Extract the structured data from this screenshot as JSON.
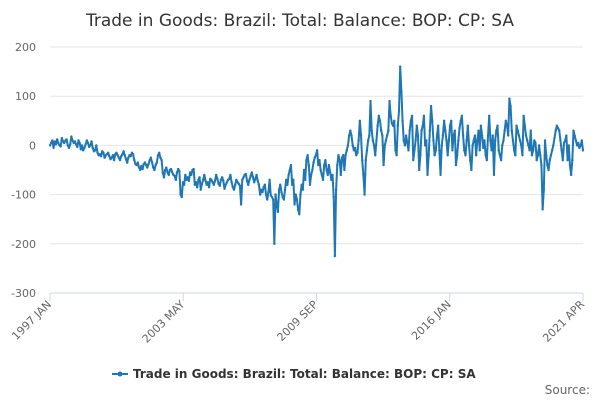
{
  "chart_data": {
    "type": "line",
    "title": "Trade in Goods: Brazil: Total: Balance: BOP: CP: SA",
    "xlabel": "",
    "ylabel": "",
    "ylim": [
      -300,
      200
    ],
    "yticks": [
      200,
      100,
      0,
      -100,
      -200,
      -300
    ],
    "x_start": "1997 JAN",
    "x_end": "2021 APR",
    "xtick_labels": [
      "1997 JAN",
      "2003 MAY",
      "2009 SEP",
      "2016 JAN",
      "2021 APR"
    ],
    "grid": true,
    "legend_position": "bottom-center",
    "color": "#1f77b4",
    "series": [
      {
        "name": "Trade in Goods: Brazil: Total: Balance: BOP: CP: SA",
        "frequency": "monthly",
        "values": [
          0,
          5,
          10,
          -5,
          8,
          2,
          12,
          5,
          0,
          -2,
          15,
          8,
          5,
          10,
          12,
          0,
          -5,
          2,
          18,
          10,
          5,
          8,
          2,
          -3,
          10,
          5,
          -8,
          0,
          -10,
          -5,
          2,
          10,
          5,
          -3,
          0,
          8,
          -5,
          -12,
          -10,
          0,
          -15,
          -20,
          -18,
          -22,
          -12,
          -15,
          -25,
          -20,
          -18,
          -15,
          -22,
          -28,
          -25,
          -20,
          -30,
          -18,
          -15,
          -20,
          -25,
          -30,
          -22,
          -18,
          -12,
          -20,
          -28,
          -35,
          -25,
          -20,
          -22,
          -15,
          -18,
          -30,
          -38,
          -40,
          -35,
          -45,
          -50,
          -42,
          -48,
          -38,
          -35,
          -40,
          -45,
          -38,
          -30,
          -25,
          -35,
          -45,
          -50,
          -40,
          -35,
          -20,
          -15,
          -25,
          -30,
          -55,
          -65,
          -50,
          -45,
          -55,
          -60,
          -50,
          -48,
          -55,
          -60,
          -62,
          -70,
          -55,
          -48,
          -52,
          -100,
          -105,
          -75,
          -80,
          -60,
          -70,
          -65,
          -72,
          -55,
          -60,
          -50,
          -48,
          -80,
          -75,
          -85,
          -70,
          -65,
          -90,
          -78,
          -70,
          -60,
          -72,
          -80,
          -75,
          -85,
          -68,
          -70,
          -75,
          -80,
          -72,
          -60,
          -68,
          -78,
          -82,
          -70,
          -65,
          -72,
          -88,
          -80,
          -75,
          -70,
          -68,
          -60,
          -75,
          -85,
          -90,
          -80,
          -70,
          -75,
          -78,
          -82,
          -120,
          -70,
          -65,
          -60,
          -58,
          -72,
          -80,
          -70,
          -62,
          -55,
          -65,
          -75,
          -68,
          -60,
          -72,
          -80,
          -100,
          -90,
          -95,
          -85,
          -80,
          -100,
          -110,
          -95,
          -70,
          -102,
          -105,
          -110,
          -200,
          -100,
          -120,
          -135,
          -90,
          -80,
          -95,
          -105,
          -110,
          -90,
          -70,
          -80,
          -60,
          -50,
          -40,
          -80,
          -70,
          -120,
          -100,
          -110,
          -130,
          -140,
          -100,
          -80,
          -90,
          -50,
          -70,
          -30,
          -20,
          -40,
          -80,
          -60,
          -50,
          -35,
          -25,
          -20,
          -10,
          -40,
          -30,
          -50,
          -60,
          -70,
          -40,
          -30,
          -50,
          -60,
          -40,
          -55,
          -70,
          -60,
          -105,
          -225,
          -90,
          -40,
          -20,
          -30,
          -60,
          -25,
          -20,
          -50,
          -20,
          -10,
          0,
          20,
          30,
          20,
          0,
          -10,
          -5,
          -20,
          -15,
          10,
          50,
          20,
          -30,
          -60,
          -100,
          -30,
          -10,
          10,
          20,
          90,
          30,
          10,
          0,
          -20,
          10,
          40,
          60,
          50,
          30,
          20,
          -40,
          0,
          10,
          20,
          30,
          90,
          60,
          45,
          40,
          50,
          -10,
          -20,
          40,
          70,
          160,
          110,
          50,
          10,
          0,
          20,
          5,
          -10,
          30,
          50,
          60,
          -30,
          -10,
          10,
          40,
          20,
          -50,
          -20,
          30,
          40,
          60,
          0,
          10,
          -60,
          -20,
          30,
          80,
          50,
          10,
          -20,
          -10,
          20,
          40,
          -10,
          -60,
          0,
          20,
          50,
          30,
          10,
          -20,
          10,
          40,
          50,
          -10,
          20,
          30,
          -40,
          -20,
          10,
          35,
          50,
          60,
          20,
          -10,
          -20,
          10,
          40,
          0,
          -30,
          -50,
          0,
          10,
          20,
          -20,
          10,
          30,
          -10,
          40,
          20,
          -5,
          10,
          -20,
          -30,
          20,
          60,
          10,
          -10,
          20,
          -60,
          10,
          30,
          40,
          -10,
          -20,
          -30,
          0,
          10,
          30,
          50,
          40,
          20,
          95,
          80,
          30,
          10,
          -10,
          -20,
          40,
          30,
          20,
          10,
          0,
          -20,
          60,
          40,
          20,
          10,
          0,
          -10,
          30,
          -20,
          -10,
          10,
          5,
          -30,
          -20,
          0,
          -20,
          -40,
          -130,
          -90,
          10,
          -20,
          -40,
          -50,
          -30,
          -20,
          -10,
          0,
          15,
          30,
          40,
          35,
          30,
          10,
          -10,
          -30,
          5,
          10,
          20,
          -30,
          0,
          -40,
          -60,
          -30,
          30,
          20,
          10,
          0,
          5,
          -5,
          0,
          10,
          -10
        ]
      }
    ],
    "credit": "Source:"
  }
}
